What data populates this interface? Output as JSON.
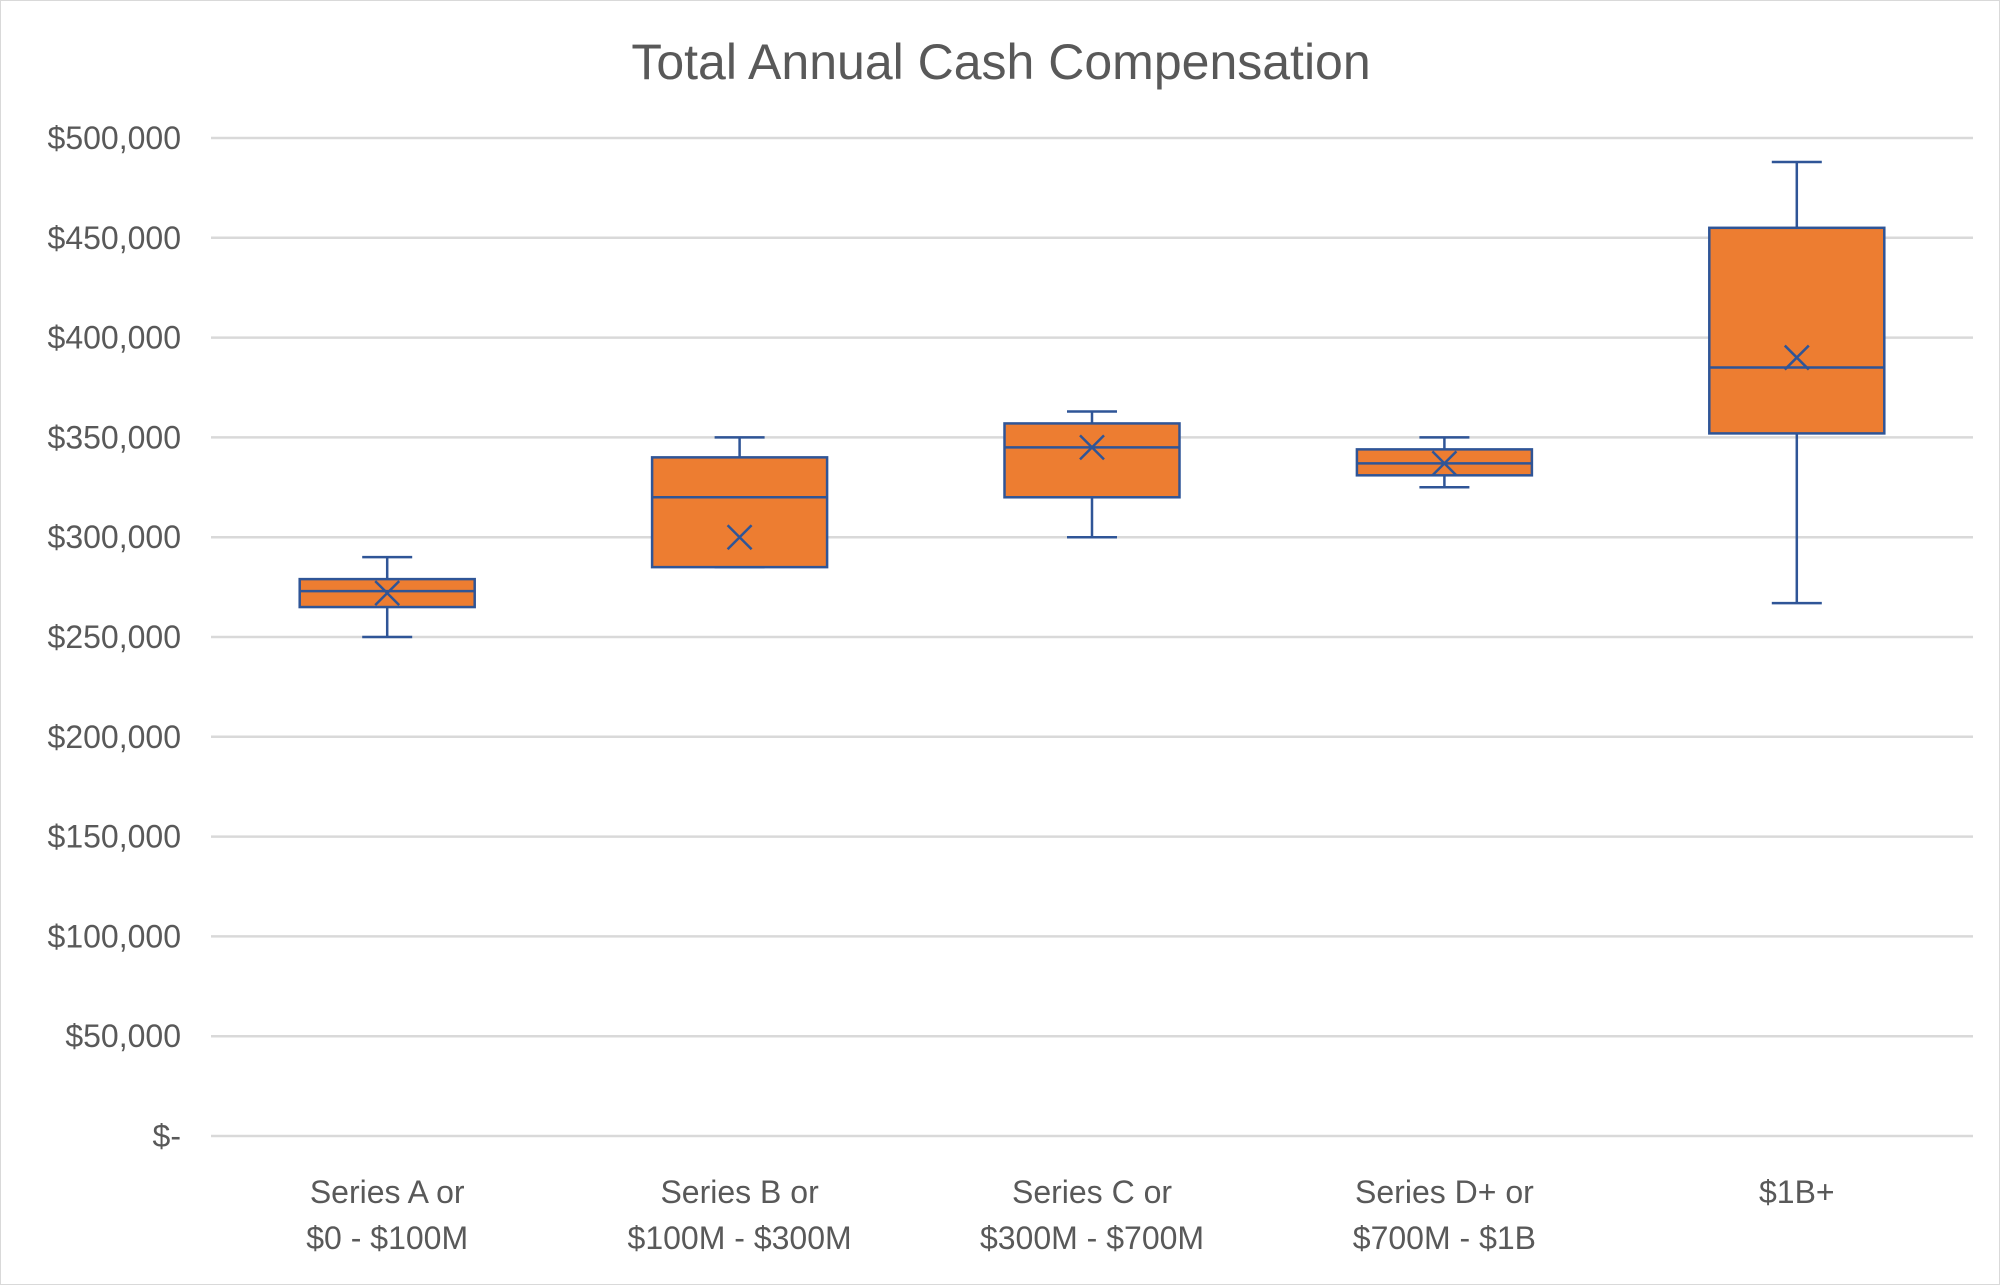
{
  "chart_data": {
    "type": "box",
    "title": "Total Annual Cash Compensation",
    "xlabel": "",
    "ylabel": "",
    "ylim": [
      0,
      500000
    ],
    "y_ticks": [
      {
        "value": 0,
        "label": "$-"
      },
      {
        "value": 50000,
        "label": "$50,000"
      },
      {
        "value": 100000,
        "label": "$100,000"
      },
      {
        "value": 150000,
        "label": "$150,000"
      },
      {
        "value": 200000,
        "label": "$200,000"
      },
      {
        "value": 250000,
        "label": "$250,000"
      },
      {
        "value": 300000,
        "label": "$300,000"
      },
      {
        "value": 350000,
        "label": "$350,000"
      },
      {
        "value": 400000,
        "label": "$400,000"
      },
      {
        "value": 450000,
        "label": "$450,000"
      },
      {
        "value": 500000,
        "label": "$500,000"
      }
    ],
    "grid": true,
    "legend": "none",
    "box_fill": "#ED7D31",
    "line_color": "#2F5597",
    "categories": [
      {
        "line1": "Series A or",
        "line2": "$0 - $100M",
        "min": 250000,
        "q1": 265000,
        "median": 273000,
        "q3": 279000,
        "max": 290000,
        "mean": 272000
      },
      {
        "line1": "Series B or",
        "line2": "$100M - $300M",
        "min": 285000,
        "q1": 285000,
        "median": 320000,
        "q3": 340000,
        "max": 350000,
        "mean": 300000
      },
      {
        "line1": "Series C or",
        "line2": "$300M - $700M",
        "min": 300000,
        "q1": 320000,
        "median": 345000,
        "q3": 357000,
        "max": 363000,
        "mean": 345000
      },
      {
        "line1": "Series D+ or",
        "line2": "$700M - $1B",
        "min": 325000,
        "q1": 331000,
        "median": 337000,
        "q3": 344000,
        "max": 350000,
        "mean": 337000
      },
      {
        "line1": "$1B+",
        "line2": "",
        "min": 267000,
        "q1": 352000,
        "median": 385000,
        "q3": 455000,
        "max": 488000,
        "mean": 390000
      }
    ]
  }
}
